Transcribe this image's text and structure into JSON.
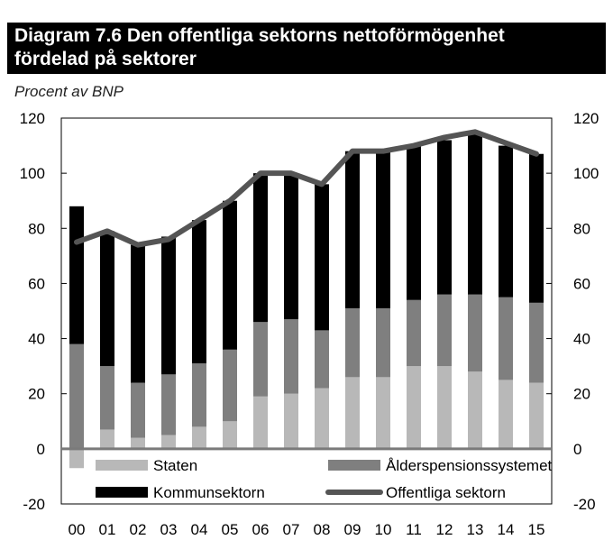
{
  "title": {
    "line1": "Diagram 7.6 Den offentliga sektorns nettoförmögenhet",
    "line2": "fördelad på sektorer"
  },
  "unit_label": "Procent av BNP",
  "chart_data": {
    "type": "bar",
    "stacked": true,
    "categories": [
      "00",
      "01",
      "02",
      "03",
      "04",
      "05",
      "06",
      "07",
      "08",
      "09",
      "10",
      "11",
      "12",
      "13",
      "14",
      "15"
    ],
    "ylim": [
      -20,
      120
    ],
    "yticks": [
      -20,
      0,
      20,
      40,
      60,
      80,
      100,
      120
    ],
    "secondary_y_axis": true,
    "series": [
      {
        "name": "Staten",
        "kind": "bar",
        "color": "#b8b8b8",
        "values": [
          -7,
          7,
          4,
          5,
          8,
          10,
          19,
          20,
          22,
          26,
          26,
          30,
          30,
          28,
          25,
          24
        ]
      },
      {
        "name": "Ålderspensionssystemet",
        "kind": "bar",
        "color": "#7f7f7f",
        "values": [
          38,
          23,
          20,
          22,
          23,
          26,
          27,
          27,
          21,
          25,
          25,
          24,
          26,
          28,
          30,
          29
        ]
      },
      {
        "name": "Kommunsektorn",
        "kind": "bar",
        "color": "#000000",
        "values": [
          50,
          49,
          50,
          50,
          52,
          54,
          54,
          53,
          53,
          57,
          57,
          56,
          56,
          58,
          55,
          54
        ]
      },
      {
        "name": "Offentliga sektorn",
        "kind": "line",
        "color": "#555555",
        "values": [
          75,
          79,
          74,
          76,
          83,
          90,
          100,
          100,
          96,
          108,
          108,
          110,
          113,
          115,
          111,
          107
        ]
      }
    ],
    "legend": [
      {
        "label": "Staten",
        "series": 0,
        "style": "bar"
      },
      {
        "label": "Ålderspensionssystemet",
        "series": 1,
        "style": "bar"
      },
      {
        "label": "Kommunsektorn",
        "series": 2,
        "style": "bar"
      },
      {
        "label": "Offentliga sektorn",
        "series": 3,
        "style": "line"
      }
    ],
    "legend_position": "bottom inside"
  }
}
